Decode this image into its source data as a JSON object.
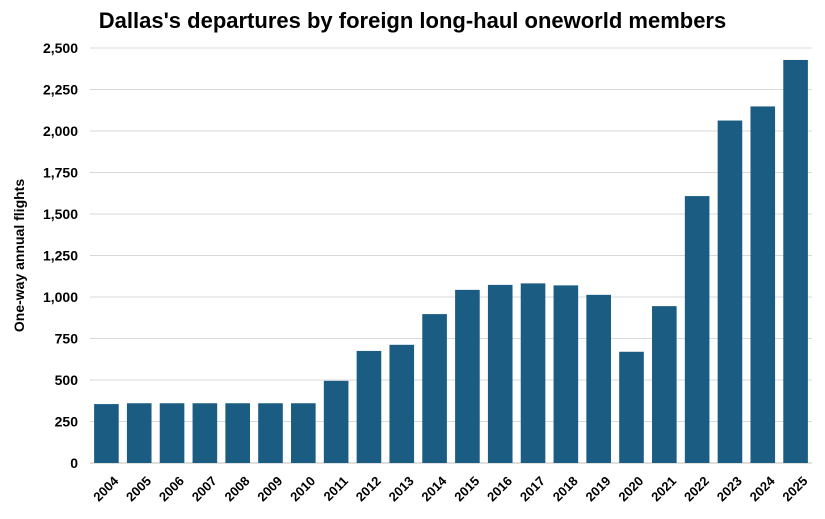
{
  "chart_data": {
    "type": "bar",
    "title": "Dallas's departures by foreign long-haul oneworld members",
    "xlabel": "",
    "ylabel": "One-way annual flights",
    "ylim": [
      0,
      2500
    ],
    "yticks": [
      0,
      250,
      500,
      750,
      1000,
      1250,
      1500,
      1750,
      2000,
      2250,
      2500
    ],
    "ytick_labels": [
      "0",
      "250",
      "500",
      "750",
      "1,000",
      "1,250",
      "1,500",
      "1,750",
      "2,000",
      "2,250",
      "2,500"
    ],
    "grid": true,
    "legend": "none",
    "bar_color": "#1b5c82",
    "categories": [
      "2004",
      "2005",
      "2006",
      "2007",
      "2008",
      "2009",
      "2010",
      "2011",
      "2012",
      "2013",
      "2014",
      "2015",
      "2016",
      "2017",
      "2018",
      "2019",
      "2020",
      "2021",
      "2022",
      "2023",
      "2024",
      "2025"
    ],
    "values": [
      355,
      360,
      360,
      360,
      360,
      360,
      360,
      495,
      675,
      712,
      897,
      1043,
      1073,
      1082,
      1070,
      1013,
      670,
      945,
      1608,
      2063,
      2148,
      2428
    ]
  }
}
